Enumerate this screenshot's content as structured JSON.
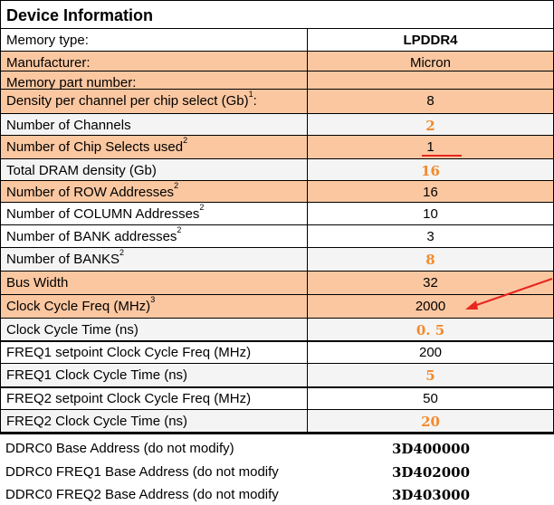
{
  "title": "Device Information",
  "colors": {
    "highlight": "#fac7a1",
    "accent": "#f28a2c",
    "annotation": "#e8261d"
  },
  "rows": [
    {
      "label": "Memory type:",
      "sup": "",
      "value": "LPDDR4",
      "style": "bold",
      "fill": false
    },
    {
      "label": "Manufacturer:",
      "sup": "",
      "value": "Micron",
      "style": "normal",
      "fill": true
    },
    {
      "label": "Memory part number:",
      "sup": "",
      "value": "",
      "style": "normal",
      "fill": true
    },
    {
      "label": "Density per channel per chip select (Gb)",
      "sup": "1",
      "suffix": ":",
      "value": "8",
      "style": "normal",
      "fill": true
    },
    {
      "label": "Number of Channels",
      "sup": "",
      "value": "2",
      "style": "orange",
      "fill": false
    },
    {
      "label": "Number of Chip Selects used",
      "sup": "2",
      "value": "1",
      "style": "normal",
      "fill": true
    },
    {
      "label": "Total DRAM density (Gb)",
      "sup": "",
      "value": "16",
      "style": "orange",
      "fill": false
    },
    {
      "label": "Number of ROW Addresses",
      "sup": "2",
      "value": "16",
      "style": "normal",
      "fill": true
    },
    {
      "label": "Number of COLUMN Addresses",
      "sup": "2",
      "value": "10",
      "style": "normal",
      "fill": false
    },
    {
      "label": "Number of BANK addresses",
      "sup": "2",
      "value": "3",
      "style": "normal",
      "fill": false
    },
    {
      "label": "Number of BANKS",
      "sup": "2",
      "value": "8",
      "style": "orange",
      "fill": false
    },
    {
      "label": "Bus Width",
      "sup": "",
      "value": "32",
      "style": "normal",
      "fill": true
    },
    {
      "label": "Clock Cycle Freq (MHz)",
      "sup": "3",
      "value": "2000",
      "style": "normal",
      "fill": true
    },
    {
      "label": "Clock Cycle Time (ns)",
      "sup": "",
      "value": "0. 5",
      "style": "orange",
      "fill": false
    },
    {
      "label": "FREQ1 setpoint Clock Cycle Freq (MHz)",
      "sup": "",
      "value": "200",
      "style": "normal",
      "fill": false
    },
    {
      "label": "FREQ1 Clock Cycle Time (ns)",
      "sup": "",
      "value": "5",
      "style": "orange",
      "fill": false
    },
    {
      "label": "FREQ2 setpoint Clock Cycle Freq (MHz)",
      "sup": "",
      "value": "50",
      "style": "normal",
      "fill": false
    },
    {
      "label": "FREQ2 Clock Cycle Time (ns)",
      "sup": "",
      "value": "20",
      "style": "orange",
      "fill": false
    }
  ],
  "base_addresses": [
    {
      "label": "DDRC0 Base Address (do not modify)",
      "value": "3D400000"
    },
    {
      "label": "DDRC0 FREQ1 Base Address (do not modify",
      "value": "3D402000"
    },
    {
      "label": "DDRC0 FREQ2 Base Address (do not modify",
      "value": "3D403000"
    }
  ]
}
